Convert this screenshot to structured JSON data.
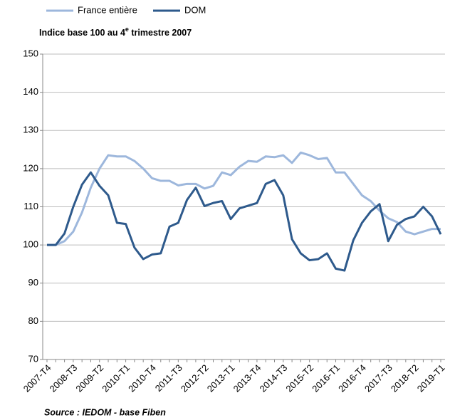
{
  "chart_data": {
    "type": "line",
    "subtitle": [
      "Indice base  100 au 4",
      "e",
      " trimestre 2007"
    ],
    "source": "Source : IEDOM - base Fiben",
    "categories": [
      "2007-T4",
      null,
      null,
      "2008-T3",
      null,
      null,
      "2009-T2",
      null,
      null,
      "2010-T1",
      null,
      null,
      "2010-T4",
      null,
      null,
      "2011-T3",
      null,
      null,
      "2012-T2",
      null,
      null,
      "2013-T1",
      null,
      null,
      "2013-T4",
      null,
      null,
      "2014-T3",
      null,
      null,
      "2015-T2",
      null,
      null,
      "2016-T1",
      null,
      null,
      "2016-T4",
      null,
      null,
      "2017-T3",
      null,
      null,
      "2018-T2",
      null,
      null,
      "2019-T1"
    ],
    "series": [
      {
        "name": "France entière",
        "color": "#9db7dc",
        "values": [
          100,
          100,
          101,
          103.5,
          108.5,
          115,
          120,
          123.5,
          123.2,
          123.2,
          122,
          120,
          117.5,
          116.8,
          116.8,
          115.6,
          116,
          116,
          114.8,
          115.5,
          119,
          118.3,
          120.5,
          122,
          121.8,
          123.2,
          123,
          123.5,
          121.5,
          124.2,
          123.5,
          122.5,
          122.8,
          119,
          119,
          116,
          113,
          111.5,
          109,
          107,
          106,
          103.5,
          102.8,
          103.5,
          104.2,
          104.2
        ]
      },
      {
        "name": "DOM",
        "color": "#2e5a8c",
        "values": [
          100,
          100,
          103,
          110,
          115.8,
          119,
          115.5,
          113,
          105.8,
          105.5,
          99.3,
          96.3,
          97.5,
          97.8,
          104.8,
          105.8,
          111.8,
          115,
          110.2,
          111,
          111.5,
          106.8,
          109.6,
          110.3,
          111,
          116,
          117,
          113,
          101.5,
          97.8,
          96,
          96.3,
          97.8,
          93.8,
          93.3,
          101.2,
          105.8,
          108.8,
          110.7,
          101,
          105.3,
          106.8,
          107.5,
          110,
          107.5,
          102.8
        ]
      }
    ],
    "ylim": [
      70,
      150
    ],
    "yticks": [
      70,
      80,
      90,
      100,
      110,
      120,
      130,
      140,
      150
    ],
    "grid": true
  }
}
